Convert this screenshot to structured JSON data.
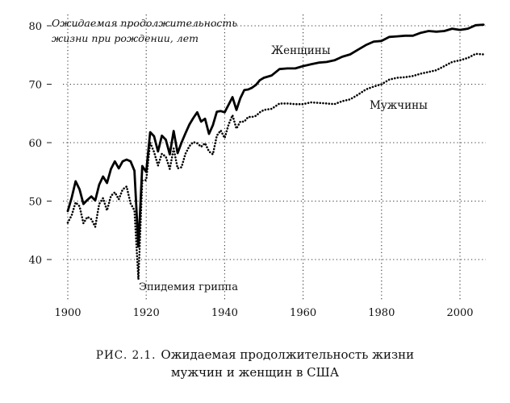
{
  "chart_data": {
    "type": "line",
    "title_line1": "Ожидаемая продолжительность",
    "title_line2": "жизни при рождении, лет",
    "xlim": [
      1898,
      2007
    ],
    "ylim": [
      34,
      82
    ],
    "x_ticks": [
      "1900",
      "1920",
      "1940",
      "1960",
      "1980",
      "2000"
    ],
    "y_ticks": [
      "40",
      "50",
      "60",
      "70",
      "80"
    ],
    "grid": true,
    "annotation": "Эпидемия гриппа",
    "series": [
      {
        "name": "Женщины",
        "style": "solid",
        "color": "#000000",
        "points": [
          [
            1900,
            48.3
          ],
          [
            1901,
            50.6
          ],
          [
            1902,
            53.4
          ],
          [
            1903,
            52.0
          ],
          [
            1904,
            49.5
          ],
          [
            1905,
            50.2
          ],
          [
            1906,
            50.8
          ],
          [
            1907,
            50.1
          ],
          [
            1908,
            52.8
          ],
          [
            1909,
            54.2
          ],
          [
            1910,
            53.1
          ],
          [
            1911,
            55.5
          ],
          [
            1912,
            56.8
          ],
          [
            1913,
            55.6
          ],
          [
            1914,
            56.8
          ],
          [
            1915,
            57.1
          ],
          [
            1916,
            56.8
          ],
          [
            1917,
            55.2
          ],
          [
            1918,
            42.2
          ],
          [
            1919,
            56.0
          ],
          [
            1920,
            55.0
          ],
          [
            1921,
            61.8
          ],
          [
            1922,
            61.1
          ],
          [
            1923,
            58.5
          ],
          [
            1924,
            61.2
          ],
          [
            1925,
            60.5
          ],
          [
            1926,
            58.0
          ],
          [
            1927,
            62.0
          ],
          [
            1928,
            58.2
          ],
          [
            1929,
            60.0
          ],
          [
            1930,
            61.6
          ],
          [
            1931,
            63.1
          ],
          [
            1932,
            64.2
          ],
          [
            1933,
            65.2
          ],
          [
            1934,
            63.6
          ],
          [
            1935,
            64.1
          ],
          [
            1936,
            61.5
          ],
          [
            1937,
            63.0
          ],
          [
            1938,
            65.3
          ],
          [
            1939,
            65.4
          ],
          [
            1940,
            65.2
          ],
          [
            1941,
            66.5
          ],
          [
            1942,
            67.8
          ],
          [
            1943,
            65.6
          ],
          [
            1944,
            67.6
          ],
          [
            1945,
            69.0
          ],
          [
            1946,
            69.1
          ],
          [
            1947,
            69.4
          ],
          [
            1948,
            69.9
          ],
          [
            1949,
            70.7
          ],
          [
            1950,
            71.1
          ],
          [
            1952,
            71.5
          ],
          [
            1954,
            72.6
          ],
          [
            1956,
            72.7
          ],
          [
            1958,
            72.7
          ],
          [
            1960,
            73.1
          ],
          [
            1962,
            73.4
          ],
          [
            1964,
            73.7
          ],
          [
            1966,
            73.8
          ],
          [
            1968,
            74.1
          ],
          [
            1970,
            74.7
          ],
          [
            1972,
            75.1
          ],
          [
            1974,
            75.9
          ],
          [
            1976,
            76.7
          ],
          [
            1978,
            77.3
          ],
          [
            1980,
            77.4
          ],
          [
            1982,
            78.1
          ],
          [
            1984,
            78.2
          ],
          [
            1986,
            78.3
          ],
          [
            1988,
            78.3
          ],
          [
            1990,
            78.8
          ],
          [
            1992,
            79.1
          ],
          [
            1994,
            79.0
          ],
          [
            1996,
            79.1
          ],
          [
            1998,
            79.5
          ],
          [
            2000,
            79.3
          ],
          [
            2002,
            79.5
          ],
          [
            2004,
            80.1
          ],
          [
            2006,
            80.2
          ]
        ]
      },
      {
        "name": "Мужчины",
        "style": "dotted",
        "color": "#000000",
        "points": [
          [
            1900,
            46.3
          ],
          [
            1901,
            47.6
          ],
          [
            1902,
            49.8
          ],
          [
            1903,
            49.1
          ],
          [
            1904,
            46.2
          ],
          [
            1905,
            47.3
          ],
          [
            1906,
            46.9
          ],
          [
            1907,
            45.6
          ],
          [
            1908,
            49.5
          ],
          [
            1909,
            50.5
          ],
          [
            1910,
            48.4
          ],
          [
            1911,
            50.9
          ],
          [
            1912,
            51.5
          ],
          [
            1913,
            50.3
          ],
          [
            1914,
            52.0
          ],
          [
            1915,
            52.5
          ],
          [
            1916,
            49.6
          ],
          [
            1917,
            48.4
          ],
          [
            1918,
            36.6
          ],
          [
            1919,
            53.5
          ],
          [
            1920,
            53.6
          ],
          [
            1921,
            60.0
          ],
          [
            1922,
            58.4
          ],
          [
            1923,
            56.1
          ],
          [
            1924,
            58.1
          ],
          [
            1925,
            57.6
          ],
          [
            1926,
            55.5
          ],
          [
            1927,
            59.0
          ],
          [
            1928,
            55.6
          ],
          [
            1929,
            55.8
          ],
          [
            1930,
            58.1
          ],
          [
            1931,
            59.4
          ],
          [
            1932,
            60.1
          ],
          [
            1933,
            59.9
          ],
          [
            1934,
            59.3
          ],
          [
            1935,
            59.9
          ],
          [
            1936,
            58.5
          ],
          [
            1937,
            58.0
          ],
          [
            1938,
            61.2
          ],
          [
            1939,
            62.1
          ],
          [
            1940,
            60.8
          ],
          [
            1941,
            63.1
          ],
          [
            1942,
            64.7
          ],
          [
            1943,
            62.4
          ],
          [
            1944,
            63.6
          ],
          [
            1945,
            63.6
          ],
          [
            1946,
            64.4
          ],
          [
            1947,
            64.4
          ],
          [
            1948,
            64.6
          ],
          [
            1949,
            65.2
          ],
          [
            1950,
            65.6
          ],
          [
            1952,
            65.8
          ],
          [
            1954,
            66.7
          ],
          [
            1956,
            66.7
          ],
          [
            1958,
            66.6
          ],
          [
            1960,
            66.6
          ],
          [
            1962,
            66.9
          ],
          [
            1964,
            66.8
          ],
          [
            1966,
            66.7
          ],
          [
            1968,
            66.6
          ],
          [
            1970,
            67.1
          ],
          [
            1972,
            67.4
          ],
          [
            1974,
            68.2
          ],
          [
            1976,
            69.1
          ],
          [
            1978,
            69.6
          ],
          [
            1980,
            70.0
          ],
          [
            1982,
            70.8
          ],
          [
            1984,
            71.1
          ],
          [
            1986,
            71.2
          ],
          [
            1988,
            71.4
          ],
          [
            1990,
            71.8
          ],
          [
            1992,
            72.1
          ],
          [
            1994,
            72.4
          ],
          [
            1996,
            73.1
          ],
          [
            1998,
            73.8
          ],
          [
            2000,
            74.1
          ],
          [
            2002,
            74.5
          ],
          [
            2004,
            75.2
          ],
          [
            2006,
            75.1
          ]
        ]
      }
    ]
  },
  "caption": {
    "line1_prefix": "РИС. 2.1.",
    "line1_text": "Ожидаемая продолжительность жизни",
    "line2": "мужчин и женщин в США"
  }
}
